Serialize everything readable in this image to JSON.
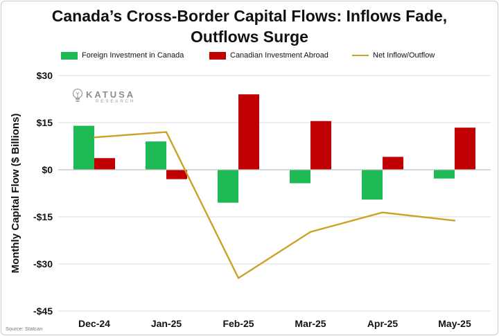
{
  "title_lines": [
    "Canada’s Cross-Border Capital Flows: Inflows Fade,",
    "Outflows Surge"
  ],
  "source": "Source: Statcan",
  "watermark": {
    "brand": "KATUSA",
    "sub": "RESEARCH",
    "icon": "lightbulb-icon"
  },
  "colors": {
    "foreign": "#1db954",
    "canadian": "#c00000",
    "net": "#c9a227",
    "grid": "#d9d9d9"
  },
  "chart_data": {
    "type": "bar",
    "title": "Canada’s Cross-Border Capital Flows: Inflows Fade, Outflows Surge",
    "ylabel": "Monthly Capital Flow ($ Billions)",
    "xlabel": "",
    "categories": [
      "Dec-24",
      "Jan-25",
      "Feb-25",
      "Mar-25",
      "Apr-25",
      "May-25"
    ],
    "ylim": [
      -45,
      30
    ],
    "yticks": [
      30,
      15,
      0,
      -15,
      -30,
      -45
    ],
    "ytick_labels": [
      "$30",
      "$15",
      "$0",
      "-$15",
      "-$30",
      "-$45"
    ],
    "grid": true,
    "legend_position": "top",
    "series": [
      {
        "name": "Foreign Investment in Canada",
        "type": "bar",
        "values": [
          14.0,
          9.0,
          -10.5,
          -4.3,
          -9.5,
          -2.8
        ]
      },
      {
        "name": "Canadian Investment Abroad",
        "type": "bar",
        "values": [
          3.7,
          -3.0,
          24.0,
          15.5,
          4.1,
          13.4
        ]
      },
      {
        "name": "Net Inflow/Outflow",
        "type": "line",
        "values": [
          10.3,
          12.0,
          -34.5,
          -19.8,
          -13.6,
          -16.2
        ]
      }
    ]
  }
}
